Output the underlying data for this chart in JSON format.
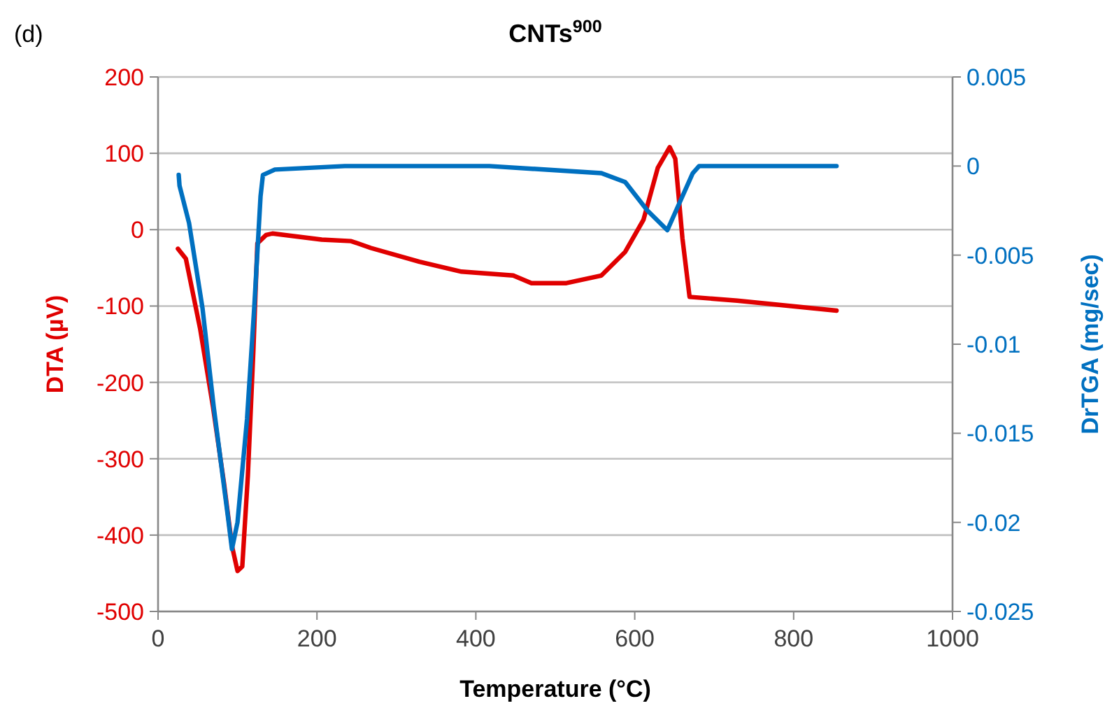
{
  "chart_data": {
    "type": "line",
    "title": "CNTs$^{900}$",
    "xlabel": "Temperature (°C)",
    "ylabel": "DTA (µV)",
    "y2label": "DrTGA (mg/sec)",
    "annotations": [
      "(d)"
    ],
    "xlim": [
      0,
      1000
    ],
    "xticks": [
      0,
      200,
      400,
      600,
      800,
      1000
    ],
    "ylim": [
      -500,
      200
    ],
    "yticks": [
      -500,
      -400,
      -300,
      -200,
      -100,
      0,
      100,
      200
    ],
    "y2lim": [
      -0.025,
      0.005
    ],
    "y2ticks": [
      -0.025,
      -0.02,
      -0.015,
      -0.01,
      -0.005,
      0,
      0.005
    ],
    "grid": "y",
    "marker": "none",
    "line_style": "solid",
    "series": [
      {
        "color": "#e00000",
        "x": [
          25,
          35,
          53,
          69,
          83,
          93,
          100,
          106,
          113,
          120,
          125,
          136,
          144,
          206,
          243,
          268,
          329,
          382,
          447,
          470,
          514,
          558,
          588,
          611,
          629,
          644,
          651,
          660,
          669,
          729,
          854
        ],
        "values": [
          -25,
          -38,
          -130,
          -231,
          -332,
          -414,
          -447,
          -441,
          -323,
          -158,
          -18,
          -7,
          -5,
          -13,
          -15,
          -24,
          -42,
          -55,
          -60,
          -70,
          -70,
          -60,
          -29,
          13,
          81,
          108,
          93,
          -11,
          -88,
          -93,
          -106
        ]
      },
      {
        "color": "#0070c0",
        "axis": "y2",
        "x": [
          26,
          27,
          39,
          56,
          70,
          88,
          93,
          100,
          112,
          121,
          129,
          132,
          147,
          235,
          417,
          558,
          588,
          616,
          641,
          658,
          673,
          681,
          854
        ],
        "values": [
          -0.0005,
          -0.0011,
          -0.0032,
          -0.008,
          -0.0135,
          -0.0197,
          -0.0215,
          -0.02,
          -0.0142,
          -0.008,
          -0.0017,
          -0.0005,
          -0.0002,
          0,
          0,
          -0.0004,
          -0.0009,
          -0.0025,
          -0.0036,
          -0.0019,
          -0.0004,
          0,
          0
        ]
      }
    ]
  }
}
